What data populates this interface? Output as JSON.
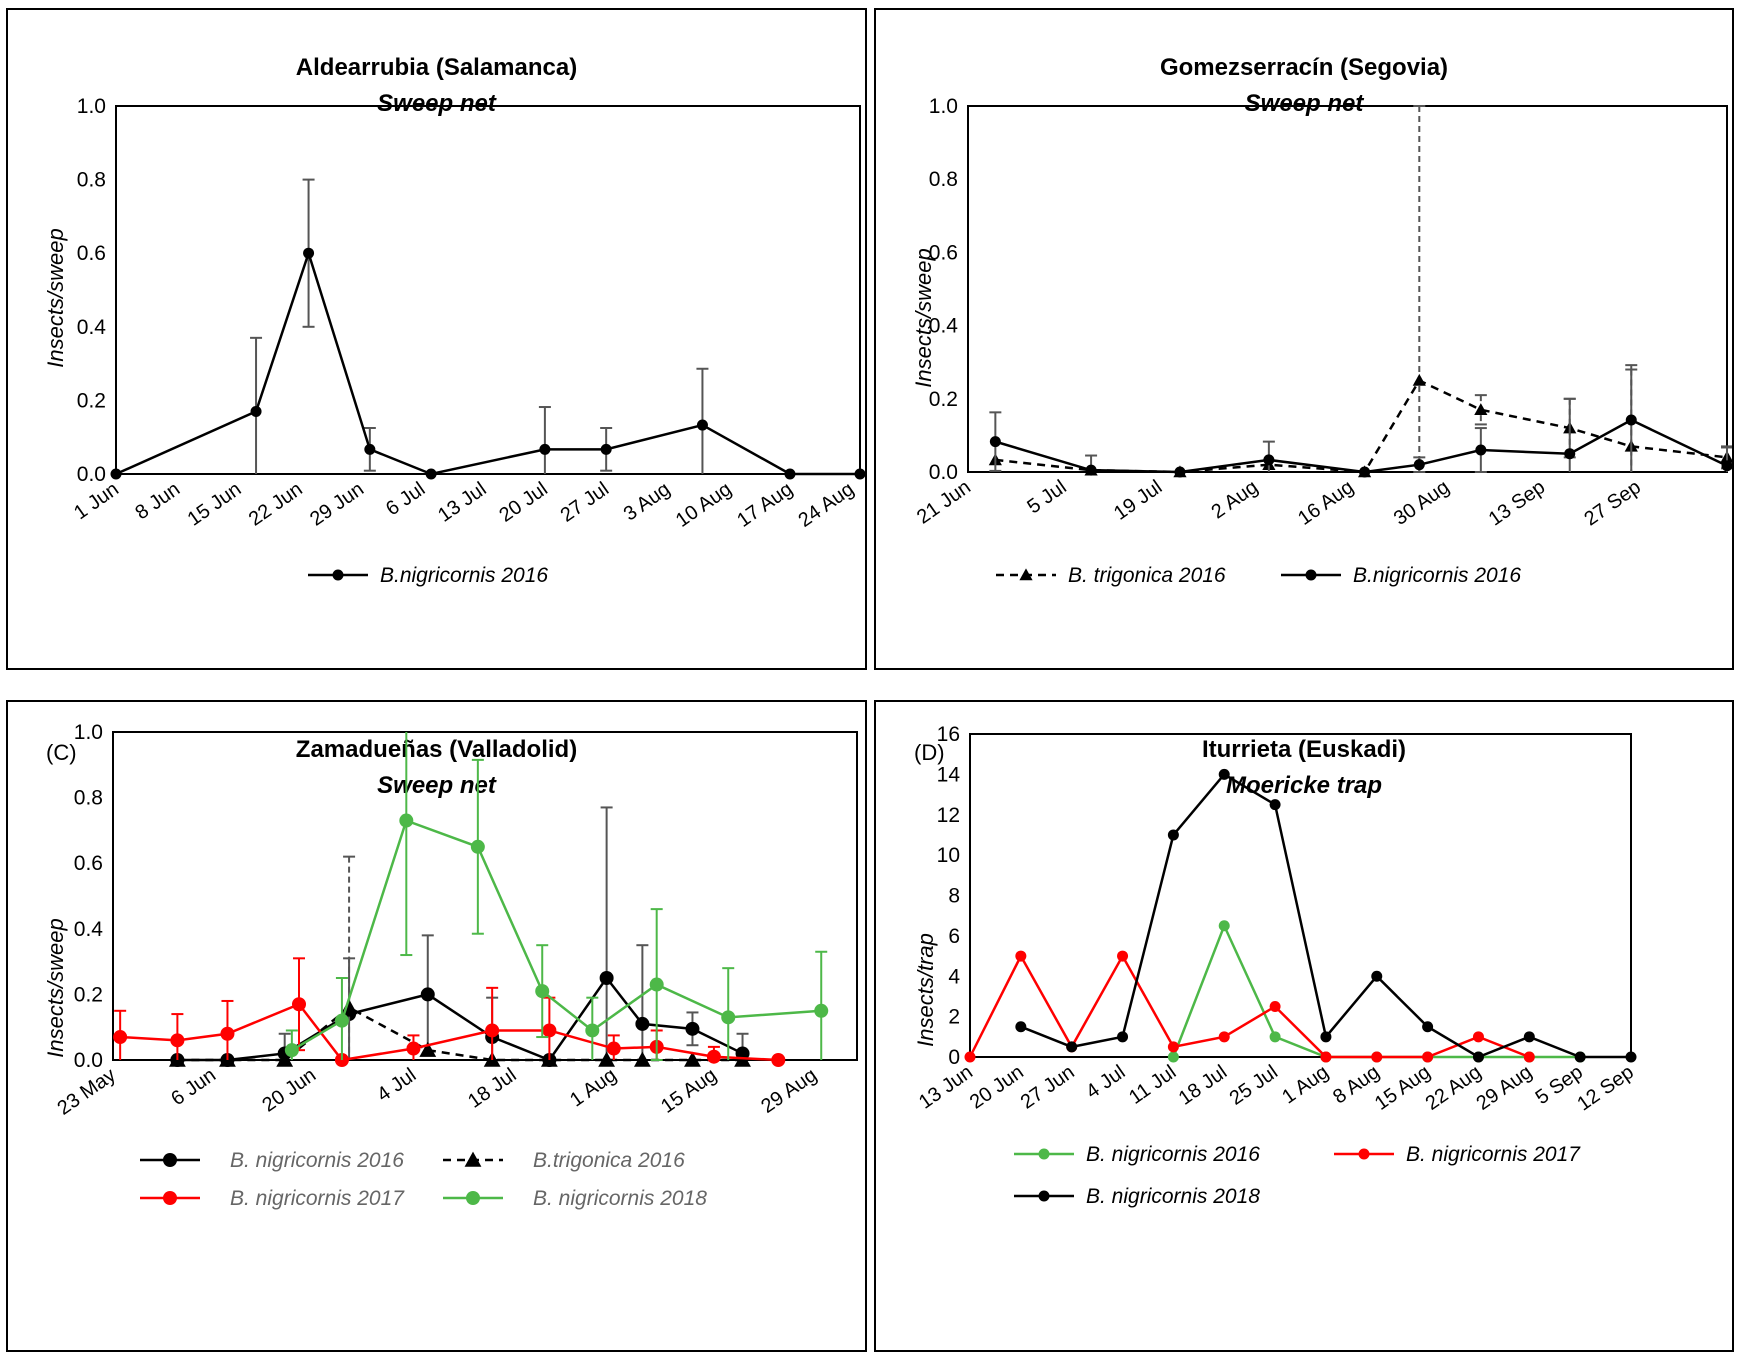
{
  "chart_data": [
    {
      "id": "A",
      "type": "line",
      "tag": "",
      "title": "Aldearrubia (Salamanca)",
      "subtitle": "Sweep net",
      "ylabel": "Insects/sweep",
      "ylim": [
        0,
        1.0
      ],
      "yticks": [
        "0.0",
        "0.2",
        "0.4",
        "0.6",
        "0.8",
        "1.0"
      ],
      "xlim": [
        1,
        86
      ],
      "xticks": [
        {
          "label": "1 Jun",
          "x": 1
        },
        {
          "label": "8 Jun",
          "x": 8
        },
        {
          "label": "15 Jun",
          "x": 15
        },
        {
          "label": "22 Jun",
          "x": 22
        },
        {
          "label": "29 Jun",
          "x": 29
        },
        {
          "label": "6 Jul",
          "x": 36
        },
        {
          "label": "13 Jul",
          "x": 43
        },
        {
          "label": "20 Jul",
          "x": 50
        },
        {
          "label": "27 Jul",
          "x": 57
        },
        {
          "label": "3 Aug",
          "x": 64
        },
        {
          "label": "10 Aug",
          "x": 71
        },
        {
          "label": "17 Aug",
          "x": 78
        },
        {
          "label": "24 Aug",
          "x": 85
        }
      ],
      "series": [
        {
          "name": "B.nigricornis 2016",
          "color": "#000000",
          "marker": "circle",
          "dash": false,
          "x": [
            1,
            17,
            23,
            30,
            37,
            50,
            57,
            68,
            78,
            86
          ],
          "y": [
            0.0,
            0.17,
            0.6,
            0.067,
            0.0,
            0.067,
            0.067,
            0.133,
            0.0,
            0.0
          ],
          "err": [
            0,
            0.2,
            0.2,
            0.058,
            0,
            0.115,
            0.058,
            0.153,
            0,
            0
          ]
        }
      ]
    },
    {
      "id": "B",
      "type": "line",
      "tag": "",
      "title": "Gomezserracín (Segovia)",
      "subtitle": "Sweep net",
      "ylabel": "Insects/sweep",
      "ylim": [
        0,
        1.0
      ],
      "yticks": [
        "0.0",
        "0.2",
        "0.4",
        "0.6",
        "0.8",
        "1.0"
      ],
      "xlim": [
        0,
        111
      ],
      "xticks": [
        {
          "label": "21 Jun",
          "x": 0
        },
        {
          "label": "5 Jul",
          "x": 14
        },
        {
          "label": "19 Jul",
          "x": 28
        },
        {
          "label": "2 Aug",
          "x": 42
        },
        {
          "label": "16 Aug",
          "x": 56
        },
        {
          "label": "30 Aug",
          "x": 70
        },
        {
          "label": "13 Sep",
          "x": 84
        },
        {
          "label": "27 Sep",
          "x": 98
        }
      ],
      "series": [
        {
          "name": "B. trigonica 2016",
          "color": "#000000",
          "marker": "triangle",
          "dash": true,
          "x": [
            4,
            18,
            31,
            44,
            58,
            66,
            75,
            88,
            97,
            111
          ],
          "y": [
            0.033,
            0.005,
            0.0,
            0.02,
            0.0,
            0.25,
            0.17,
            0.12,
            0.07,
            0.04
          ],
          "err": [
            0,
            0,
            0,
            0,
            0,
            0.75,
            0.04,
            0.08,
            0.21,
            0.03
          ]
        },
        {
          "name": "B.nigricornis 2016",
          "color": "#000000",
          "marker": "circle",
          "dash": false,
          "x": [
            4,
            18,
            31,
            44,
            58,
            66,
            75,
            88,
            97,
            111
          ],
          "y": [
            0.083,
            0.005,
            0.0,
            0.033,
            0.0,
            0.02,
            0.06,
            0.05,
            0.142,
            0.017
          ],
          "err": [
            0.08,
            0.04,
            0,
            0.05,
            0,
            0.02,
            0.06,
            0.15,
            0.15,
            0.05
          ]
        }
      ]
    },
    {
      "id": "C",
      "type": "line",
      "tag": "(C)",
      "title": "Zamadueñas (Valladolid)",
      "subtitle": "Sweep net",
      "ylabel": "Insects/sweep",
      "ylim": [
        0,
        1.0
      ],
      "yticks": [
        "0.0",
        "0.2",
        "0.4",
        "0.6",
        "0.8",
        "1.0"
      ],
      "xlim": [
        0,
        104
      ],
      "xticks": [
        {
          "label": "23 May",
          "x": 0
        },
        {
          "label": "6 Jun",
          "x": 14
        },
        {
          "label": "20 Jun",
          "x": 28
        },
        {
          "label": "4 Jul",
          "x": 42
        },
        {
          "label": "18 Jul",
          "x": 56
        },
        {
          "label": "1 Aug",
          "x": 70
        },
        {
          "label": "15 Aug",
          "x": 84
        },
        {
          "label": "29 Aug",
          "x": 98
        }
      ],
      "series": [
        {
          "name": "B. nigricornis 2016",
          "color": "#000000",
          "marker": "circle",
          "dash": false,
          "x": [
            9,
            16,
            24,
            33,
            44,
            53,
            61,
            69,
            74,
            81,
            88
          ],
          "y": [
            0.0,
            0.0,
            0.02,
            0.14,
            0.2,
            0.07,
            0.0,
            0.25,
            0.11,
            0.095,
            0.02
          ],
          "err": [
            0,
            0,
            0.06,
            0.17,
            0.18,
            0.12,
            0,
            0.52,
            0.24,
            0.05,
            0.06
          ]
        },
        {
          "name": "B.trigonica 2016",
          "color": "#000000",
          "marker": "triangle",
          "dash": true,
          "x": [
            9,
            16,
            24,
            33,
            44,
            53,
            61,
            69,
            74,
            81,
            88
          ],
          "y": [
            0.0,
            0.0,
            0.0,
            0.16,
            0.03,
            0.0,
            0.0,
            0.0,
            0.0,
            0.0,
            0.0
          ],
          "err": [
            0,
            0,
            0,
            0.46,
            0,
            0,
            0,
            0,
            0,
            0,
            0
          ]
        },
        {
          "name": "B. nigricornis 2017",
          "color": "#ff0000",
          "marker": "circle",
          "dash": false,
          "x": [
            1,
            9,
            16,
            26,
            32,
            42,
            53,
            61,
            70,
            76,
            84,
            93
          ],
          "y": [
            0.07,
            0.06,
            0.08,
            0.17,
            0.0,
            0.035,
            0.09,
            0.09,
            0.035,
            0.04,
            0.01,
            0.0
          ],
          "err": [
            0.08,
            0.08,
            0.1,
            0.14,
            0,
            0.04,
            0.13,
            0.1,
            0.04,
            0.05,
            0.03,
            0
          ]
        },
        {
          "name": "B. nigricornis 2018",
          "color": "#4db848",
          "marker": "circle",
          "dash": false,
          "x": [
            25,
            32,
            41,
            51,
            60,
            67,
            76,
            86,
            99
          ],
          "y": [
            0.03,
            0.12,
            0.73,
            0.65,
            0.21,
            0.09,
            0.23,
            0.13,
            0.15
          ],
          "err": [
            0.06,
            0.13,
            0.41,
            0.265,
            0.14,
            0.1,
            0.23,
            0.15,
            0.18
          ]
        }
      ]
    },
    {
      "id": "D",
      "type": "line",
      "tag": "(D)",
      "title": "Iturrieta (Euskadi)",
      "subtitle": "Moericke trap",
      "ylabel": "Insects/trap",
      "ylim": [
        0,
        16
      ],
      "yticks": [
        "0",
        "2",
        "4",
        "6",
        "8",
        "10",
        "12",
        "14",
        "16"
      ],
      "xlim": [
        0,
        91
      ],
      "xticks": [
        {
          "label": "13 Jun",
          "x": 0
        },
        {
          "label": "20 Jun",
          "x": 7
        },
        {
          "label": "27 Jun",
          "x": 14
        },
        {
          "label": "4 Jul",
          "x": 21
        },
        {
          "label": "11 Jul",
          "x": 28
        },
        {
          "label": "18 Jul",
          "x": 35
        },
        {
          "label": "25 Jul",
          "x": 42
        },
        {
          "label": "1 Aug",
          "x": 49
        },
        {
          "label": "8 Aug",
          "x": 56
        },
        {
          "label": "15 Aug",
          "x": 63
        },
        {
          "label": "22 Aug",
          "x": 70
        },
        {
          "label": "29 Aug",
          "x": 77
        },
        {
          "label": "5 Sep",
          "x": 84
        },
        {
          "label": "12 Sep",
          "x": 91
        }
      ],
      "series": [
        {
          "name": "B. nigricornis 2016",
          "color": "#4db848",
          "marker": "circle",
          "dash": false,
          "x": [
            28,
            35,
            42,
            49,
            56,
            63,
            70,
            77,
            84
          ],
          "y": [
            0,
            6.5,
            1,
            0,
            0,
            0,
            0,
            0,
            0
          ],
          "err": []
        },
        {
          "name": "B. nigricornis 2017",
          "color": "#ff0000",
          "marker": "circle",
          "dash": false,
          "x": [
            0,
            7,
            14,
            21,
            28,
            35,
            42,
            49,
            56,
            63,
            70,
            77
          ],
          "y": [
            0,
            5,
            0.5,
            5,
            0.5,
            1,
            2.5,
            0,
            0,
            0,
            1,
            0
          ],
          "err": []
        },
        {
          "name": "B. nigricornis 2018",
          "color": "#000000",
          "marker": "circle",
          "dash": false,
          "x": [
            7,
            14,
            21,
            28,
            35,
            42,
            49,
            56,
            63,
            70,
            77,
            84,
            91
          ],
          "y": [
            1.5,
            0.5,
            1,
            11,
            14,
            12.5,
            1,
            4,
            1.5,
            0,
            1,
            0,
            0
          ],
          "err": []
        }
      ]
    }
  ]
}
